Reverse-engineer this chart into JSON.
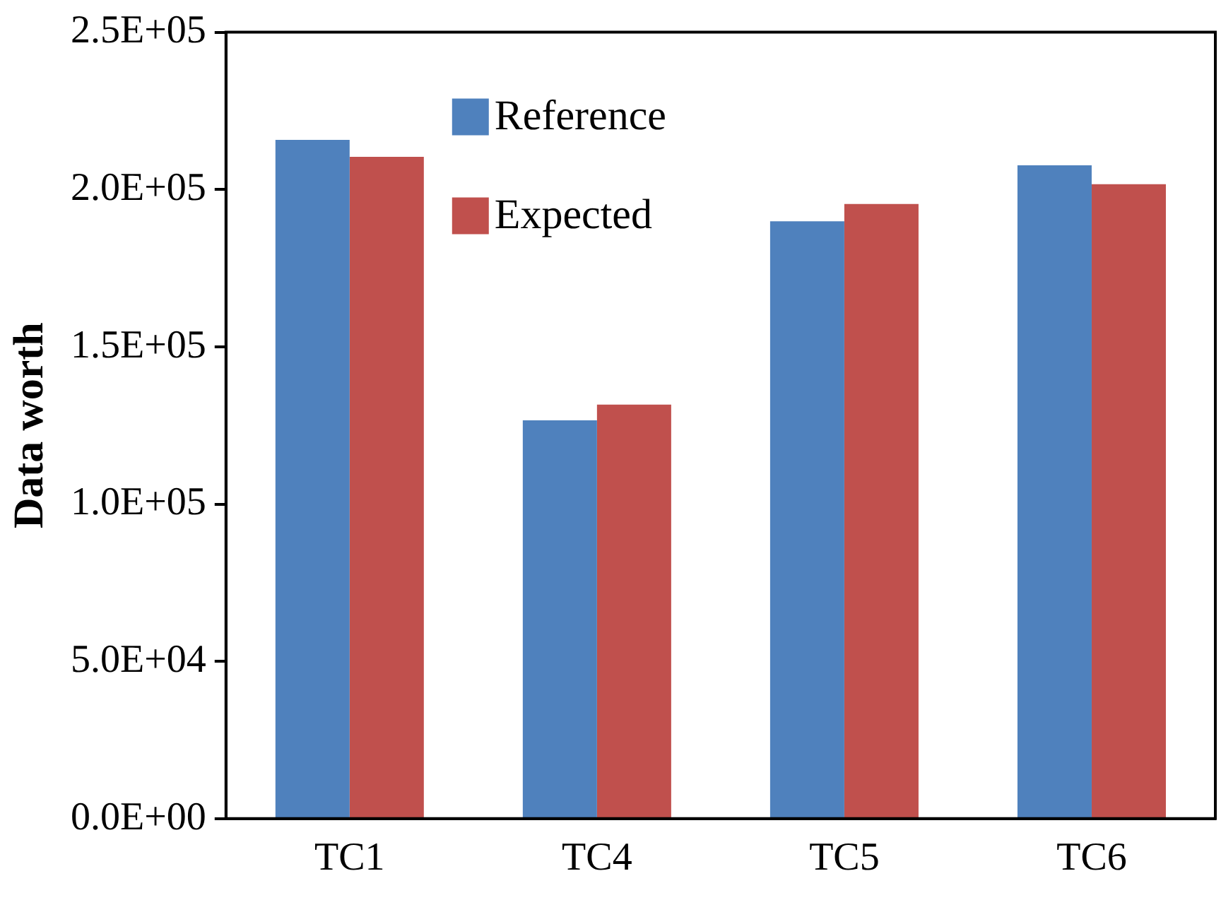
{
  "chart_data": {
    "type": "bar",
    "ylabel": "Data worth",
    "categories": [
      "TC1",
      "TC4",
      "TC5",
      "TC6"
    ],
    "series": [
      {
        "name": "Reference",
        "color": "#4f81bd",
        "values": [
          215800,
          126600,
          189900,
          207700
        ]
      },
      {
        "name": "Expected",
        "color": "#c0504d",
        "values": [
          210400,
          131600,
          195400,
          201700
        ]
      }
    ],
    "ylim": [
      0,
      250000
    ],
    "yticks": [
      {
        "value": 0,
        "label": "0.0E+00"
      },
      {
        "value": 50000,
        "label": "5.0E+04"
      },
      {
        "value": 100000,
        "label": "1.0E+05"
      },
      {
        "value": 150000,
        "label": "1.5E+05"
      },
      {
        "value": 200000,
        "label": "2.0E+05"
      },
      {
        "value": 250000,
        "label": "2.5E+05"
      }
    ],
    "grid": false,
    "legend": "top left"
  }
}
